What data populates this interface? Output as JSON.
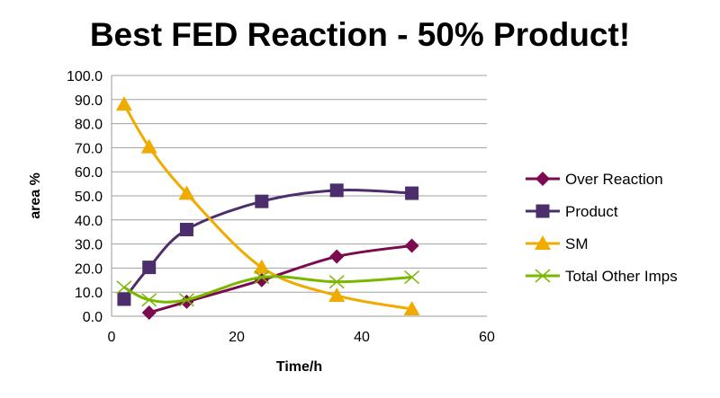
{
  "chart_data": {
    "type": "line",
    "title": "Best FED Reaction - 50% Product!",
    "xlabel": "Time/h",
    "ylabel": "area %",
    "xlim": [
      0,
      60
    ],
    "ylim": [
      0,
      100
    ],
    "xticks": [
      "0",
      "20",
      "40",
      "60"
    ],
    "yticks": [
      "0.0",
      "10.0",
      "20.0",
      "30.0",
      "40.0",
      "50.0",
      "60.0",
      "70.0",
      "80.0",
      "90.0",
      "100.0"
    ],
    "grid": "horizontal",
    "legend_position": "right",
    "series": [
      {
        "name": "Over Reaction",
        "color": "#7B0A4E",
        "marker": "diamond",
        "x": [
          6,
          12,
          24,
          36,
          48
        ],
        "y": [
          1.5,
          6.0,
          15.0,
          24.8,
          29.3
        ]
      },
      {
        "name": "Product",
        "color": "#4B2E6B",
        "marker": "square",
        "x": [
          2,
          6,
          12,
          24,
          36,
          48
        ],
        "y": [
          7.1,
          20.3,
          36.0,
          47.7,
          52.3,
          51.1
        ]
      },
      {
        "name": "SM",
        "color": "#F0AB00",
        "marker": "triangle",
        "x": [
          2,
          6,
          12,
          24,
          36,
          48
        ],
        "y": [
          88.0,
          70.3,
          51.0,
          20.3,
          8.6,
          3.0
        ]
      },
      {
        "name": "Total Other Imps",
        "color": "#7AB800",
        "marker": "x",
        "x": [
          2,
          6,
          12,
          24,
          36,
          48
        ],
        "y": [
          12.0,
          6.8,
          6.8,
          16.2,
          14.3,
          16.2
        ]
      }
    ]
  }
}
